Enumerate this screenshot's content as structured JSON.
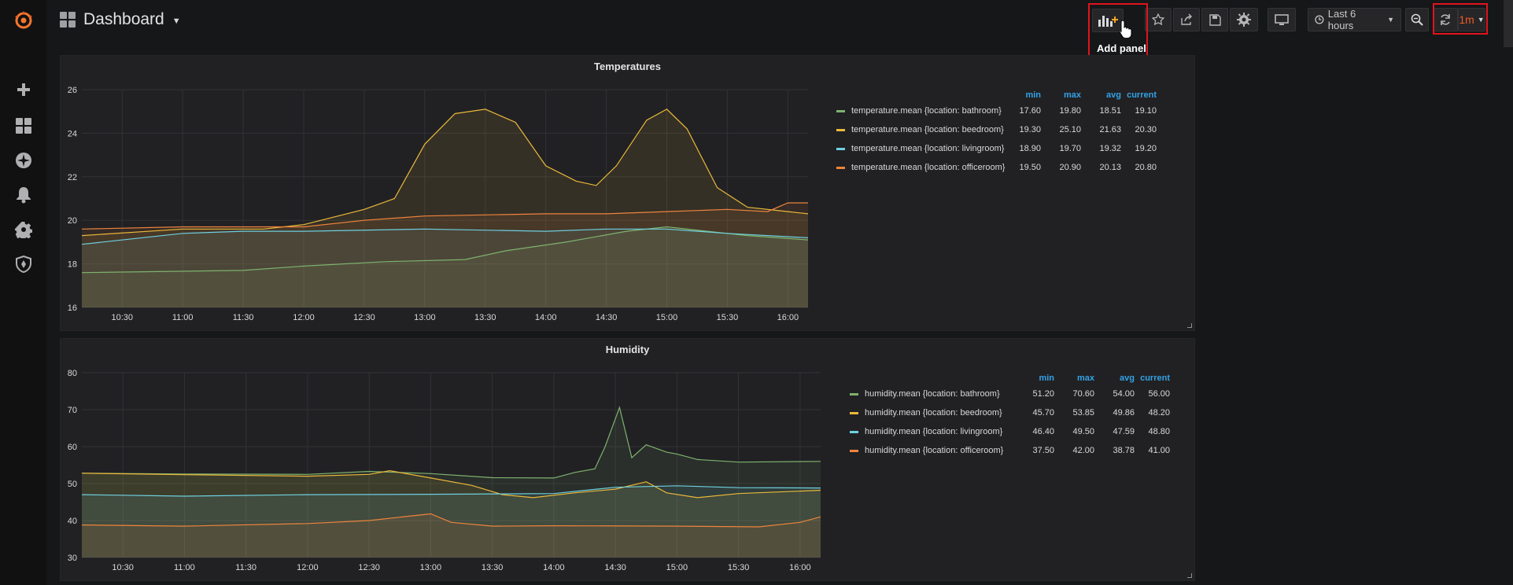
{
  "header": {
    "dashboard_title": "Dashboard",
    "add_panel_tooltip": "Add panel",
    "time_range_label": "Last 6 hours",
    "refresh_interval": "1m"
  },
  "sidebar": {
    "items": [
      {
        "name": "grafana-logo-icon"
      },
      {
        "name": "plus-icon"
      },
      {
        "name": "dashboards-grid-icon"
      },
      {
        "name": "explore-compass-icon"
      },
      {
        "name": "alerting-bell-icon"
      },
      {
        "name": "configuration-gear-icon"
      },
      {
        "name": "server-admin-shield-icon"
      }
    ]
  },
  "colors": {
    "bathroom": "#7eb26d",
    "beedroom": "#eab839",
    "livingroom": "#6ed0e0",
    "officeroom": "#ef843c",
    "accent": "#33a2e5",
    "highlight": "#e0141e"
  },
  "legend_headers": [
    "min",
    "max",
    "avg",
    "current"
  ],
  "panels": [
    {
      "title": "Temperatures",
      "series": [
        {
          "name": "temperature.mean {location: bathroom}",
          "min": "17.60",
          "max": "19.80",
          "avg": "18.51",
          "current": "19.10"
        },
        {
          "name": "temperature.mean {location: beedroom}",
          "min": "19.30",
          "max": "25.10",
          "avg": "21.63",
          "current": "20.30"
        },
        {
          "name": "temperature.mean {location: livingroom}",
          "min": "18.90",
          "max": "19.70",
          "avg": "19.32",
          "current": "19.20"
        },
        {
          "name": "temperature.mean {location: officeroom}",
          "min": "19.50",
          "max": "20.90",
          "avg": "20.13",
          "current": "20.80"
        }
      ]
    },
    {
      "title": "Humidity",
      "series": [
        {
          "name": "humidity.mean {location: bathroom}",
          "min": "51.20",
          "max": "70.60",
          "avg": "54.00",
          "current": "56.00"
        },
        {
          "name": "humidity.mean {location: beedroom}",
          "min": "45.70",
          "max": "53.85",
          "avg": "49.86",
          "current": "48.20"
        },
        {
          "name": "humidity.mean {location: livingroom}",
          "min": "46.40",
          "max": "49.50",
          "avg": "47.59",
          "current": "48.80"
        },
        {
          "name": "humidity.mean {location: officeroom}",
          "min": "37.50",
          "max": "42.00",
          "avg": "38.78",
          "current": "41.00"
        }
      ]
    }
  ],
  "chart_data": [
    {
      "type": "line",
      "title": "Temperatures",
      "x": [
        "10:30",
        "11:00",
        "11:30",
        "12:00",
        "12:30",
        "13:00",
        "13:30",
        "14:00",
        "14:30",
        "15:00",
        "15:30",
        "16:00"
      ],
      "x_range": [
        "10:10",
        "16:10"
      ],
      "ylim": [
        16,
        26
      ],
      "yticks": [
        16,
        18,
        20,
        22,
        24,
        26
      ],
      "grid": true,
      "legend": "right",
      "series": [
        {
          "name": "temperature.mean {location: bathroom}",
          "color": "#7eb26d",
          "points": [
            [
              "10:10",
              17.6
            ],
            [
              "11:30",
              17.7
            ],
            [
              "12:00",
              17.9
            ],
            [
              "12:40",
              18.1
            ],
            [
              "13:20",
              18.2
            ],
            [
              "13:40",
              18.6
            ],
            [
              "14:10",
              19.0
            ],
            [
              "14:40",
              19.5
            ],
            [
              "15:00",
              19.7
            ],
            [
              "15:20",
              19.5
            ],
            [
              "15:40",
              19.3
            ],
            [
              "16:10",
              19.1
            ]
          ]
        },
        {
          "name": "temperature.mean {location: beedroom}",
          "color": "#eab839",
          "points": [
            [
              "10:10",
              19.3
            ],
            [
              "11:00",
              19.6
            ],
            [
              "11:40",
              19.6
            ],
            [
              "12:00",
              19.8
            ],
            [
              "12:30",
              20.5
            ],
            [
              "12:45",
              21.0
            ],
            [
              "13:00",
              23.5
            ],
            [
              "13:15",
              24.9
            ],
            [
              "13:30",
              25.1
            ],
            [
              "13:45",
              24.5
            ],
            [
              "14:00",
              22.5
            ],
            [
              "14:15",
              21.8
            ],
            [
              "14:25",
              21.6
            ],
            [
              "14:35",
              22.5
            ],
            [
              "14:50",
              24.6
            ],
            [
              "15:00",
              25.1
            ],
            [
              "15:10",
              24.2
            ],
            [
              "15:25",
              21.5
            ],
            [
              "15:40",
              20.6
            ],
            [
              "16:00",
              20.4
            ],
            [
              "16:10",
              20.3
            ]
          ]
        },
        {
          "name": "temperature.mean {location: livingroom}",
          "color": "#6ed0e0",
          "points": [
            [
              "10:10",
              18.9
            ],
            [
              "11:00",
              19.4
            ],
            [
              "11:30",
              19.5
            ],
            [
              "12:00",
              19.5
            ],
            [
              "13:00",
              19.6
            ],
            [
              "14:00",
              19.5
            ],
            [
              "14:30",
              19.6
            ],
            [
              "15:00",
              19.6
            ],
            [
              "15:30",
              19.4
            ],
            [
              "16:10",
              19.2
            ]
          ]
        },
        {
          "name": "temperature.mean {location: officeroom}",
          "color": "#ef843c",
          "points": [
            [
              "10:10",
              19.6
            ],
            [
              "11:00",
              19.7
            ],
            [
              "12:00",
              19.7
            ],
            [
              "12:30",
              20.0
            ],
            [
              "13:00",
              20.2
            ],
            [
              "14:00",
              20.3
            ],
            [
              "14:30",
              20.3
            ],
            [
              "15:00",
              20.4
            ],
            [
              "15:30",
              20.5
            ],
            [
              "15:50",
              20.4
            ],
            [
              "16:00",
              20.8
            ],
            [
              "16:10",
              20.8
            ]
          ]
        }
      ]
    },
    {
      "type": "line",
      "title": "Humidity",
      "x": [
        "10:30",
        "11:00",
        "11:30",
        "12:00",
        "12:30",
        "13:00",
        "13:30",
        "14:00",
        "14:30",
        "15:00",
        "15:30",
        "16:00"
      ],
      "x_range": [
        "10:10",
        "16:10"
      ],
      "ylim": [
        30,
        80
      ],
      "yticks": [
        30,
        40,
        50,
        60,
        70,
        80
      ],
      "grid": true,
      "legend": "right",
      "series": [
        {
          "name": "humidity.mean {location: bathroom}",
          "color": "#7eb26d",
          "points": [
            [
              "10:10",
              52.8
            ],
            [
              "11:00",
              52.6
            ],
            [
              "12:00",
              52.5
            ],
            [
              "12:30",
              53.3
            ],
            [
              "13:00",
              52.7
            ],
            [
              "13:30",
              51.6
            ],
            [
              "14:00",
              51.5
            ],
            [
              "14:10",
              53.0
            ],
            [
              "14:20",
              54.0
            ],
            [
              "14:25",
              60.0
            ],
            [
              "14:32",
              70.6
            ],
            [
              "14:38",
              57.0
            ],
            [
              "14:45",
              60.5
            ],
            [
              "14:55",
              58.5
            ],
            [
              "15:00",
              58.0
            ],
            [
              "15:10",
              56.5
            ],
            [
              "15:30",
              55.8
            ],
            [
              "16:10",
              56.0
            ]
          ]
        },
        {
          "name": "humidity.mean {location: beedroom}",
          "color": "#eab839",
          "points": [
            [
              "10:10",
              52.8
            ],
            [
              "11:00",
              52.4
            ],
            [
              "12:00",
              52.0
            ],
            [
              "12:30",
              52.5
            ],
            [
              "12:40",
              53.5
            ],
            [
              "13:00",
              51.5
            ],
            [
              "13:20",
              49.5
            ],
            [
              "13:35",
              47.0
            ],
            [
              "13:50",
              46.2
            ],
            [
              "14:10",
              47.5
            ],
            [
              "14:30",
              48.5
            ],
            [
              "14:45",
              50.5
            ],
            [
              "14:55",
              47.5
            ],
            [
              "15:10",
              46.2
            ],
            [
              "15:30",
              47.3
            ],
            [
              "16:10",
              48.2
            ]
          ]
        },
        {
          "name": "humidity.mean {location: livingroom}",
          "color": "#6ed0e0",
          "points": [
            [
              "10:10",
              47.0
            ],
            [
              "11:00",
              46.6
            ],
            [
              "12:00",
              47.0
            ],
            [
              "13:00",
              47.1
            ],
            [
              "14:00",
              47.3
            ],
            [
              "14:30",
              49.0
            ],
            [
              "15:00",
              49.4
            ],
            [
              "15:30",
              48.9
            ],
            [
              "16:10",
              48.8
            ]
          ]
        },
        {
          "name": "humidity.mean {location: officeroom}",
          "color": "#ef843c",
          "points": [
            [
              "10:10",
              38.8
            ],
            [
              "11:00",
              38.5
            ],
            [
              "12:00",
              39.2
            ],
            [
              "12:30",
              40.0
            ],
            [
              "13:00",
              41.8
            ],
            [
              "13:10",
              39.5
            ],
            [
              "13:30",
              38.5
            ],
            [
              "14:00",
              38.6
            ],
            [
              "15:00",
              38.5
            ],
            [
              "15:40",
              38.3
            ],
            [
              "16:00",
              39.5
            ],
            [
              "16:10",
              41.0
            ]
          ]
        }
      ]
    }
  ]
}
